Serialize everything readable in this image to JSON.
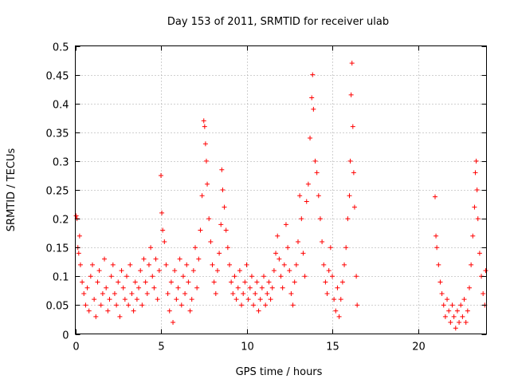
{
  "chart_data": {
    "type": "scatter",
    "title": "Day 153 of 2011, SRMTID for receiver ulab",
    "xlabel": "GPS time / hours",
    "ylabel": "SRMTID / TECUs",
    "xlim": [
      0,
      24
    ],
    "ylim": [
      0,
      0.5
    ],
    "xticks": [
      0,
      5,
      10,
      15,
      20
    ],
    "xtick_labels": [
      "0",
      "5",
      "10",
      "15",
      "20"
    ],
    "yticks": [
      0,
      0.05,
      0.1,
      0.15,
      0.2,
      0.25,
      0.3,
      0.35,
      0.4,
      0.45,
      0.5
    ],
    "ytick_labels": [
      "0",
      "0.05",
      "0.1",
      "0.15",
      "0.2",
      "0.25",
      "0.3",
      "0.35",
      "0.4",
      "0.45",
      "0.5"
    ],
    "grid": true,
    "marker": "+",
    "color": "#ff0000",
    "data_gap_hours": [
      16.5,
      21.0
    ],
    "series": [
      {
        "name": "SRMTID",
        "points": [
          [
            0.05,
            0.205
          ],
          [
            0.1,
            0.2
          ],
          [
            0.15,
            0.15
          ],
          [
            0.2,
            0.14
          ],
          [
            0.25,
            0.17
          ],
          [
            0.3,
            0.12
          ],
          [
            0.4,
            0.09
          ],
          [
            0.5,
            0.07
          ],
          [
            0.6,
            0.05
          ],
          [
            0.7,
            0.08
          ],
          [
            0.8,
            0.04
          ],
          [
            0.9,
            0.1
          ],
          [
            1.0,
            0.12
          ],
          [
            1.1,
            0.06
          ],
          [
            1.2,
            0.03
          ],
          [
            1.3,
            0.09
          ],
          [
            1.4,
            0.11
          ],
          [
            1.5,
            0.05
          ],
          [
            1.6,
            0.07
          ],
          [
            1.7,
            0.13
          ],
          [
            1.8,
            0.08
          ],
          [
            1.9,
            0.04
          ],
          [
            2.0,
            0.06
          ],
          [
            2.1,
            0.1
          ],
          [
            2.2,
            0.12
          ],
          [
            2.3,
            0.07
          ],
          [
            2.4,
            0.05
          ],
          [
            2.5,
            0.09
          ],
          [
            2.6,
            0.03
          ],
          [
            2.7,
            0.11
          ],
          [
            2.8,
            0.08
          ],
          [
            2.9,
            0.06
          ],
          [
            3.0,
            0.1
          ],
          [
            3.1,
            0.05
          ],
          [
            3.2,
            0.12
          ],
          [
            3.3,
            0.07
          ],
          [
            3.4,
            0.04
          ],
          [
            3.5,
            0.09
          ],
          [
            3.6,
            0.06
          ],
          [
            3.7,
            0.08
          ],
          [
            3.8,
            0.11
          ],
          [
            3.9,
            0.05
          ],
          [
            4.0,
            0.13
          ],
          [
            4.1,
            0.09
          ],
          [
            4.2,
            0.07
          ],
          [
            4.3,
            0.12
          ],
          [
            4.4,
            0.15
          ],
          [
            4.5,
            0.1
          ],
          [
            4.6,
            0.08
          ],
          [
            4.7,
            0.13
          ],
          [
            4.8,
            0.06
          ],
          [
            4.9,
            0.11
          ],
          [
            5.0,
            0.275
          ],
          [
            5.05,
            0.21
          ],
          [
            5.1,
            0.18
          ],
          [
            5.2,
            0.16
          ],
          [
            5.3,
            0.12
          ],
          [
            5.4,
            0.07
          ],
          [
            5.5,
            0.04
          ],
          [
            5.6,
            0.09
          ],
          [
            5.7,
            0.02
          ],
          [
            5.8,
            0.11
          ],
          [
            5.9,
            0.06
          ],
          [
            6.0,
            0.08
          ],
          [
            6.1,
            0.13
          ],
          [
            6.2,
            0.05
          ],
          [
            6.3,
            0.1
          ],
          [
            6.4,
            0.07
          ],
          [
            6.5,
            0.12
          ],
          [
            6.6,
            0.09
          ],
          [
            6.7,
            0.04
          ],
          [
            6.8,
            0.06
          ],
          [
            6.9,
            0.11
          ],
          [
            7.0,
            0.15
          ],
          [
            7.1,
            0.08
          ],
          [
            7.2,
            0.13
          ],
          [
            7.3,
            0.18
          ],
          [
            7.4,
            0.24
          ],
          [
            7.5,
            0.37
          ],
          [
            7.55,
            0.36
          ],
          [
            7.6,
            0.33
          ],
          [
            7.65,
            0.3
          ],
          [
            7.7,
            0.26
          ],
          [
            7.8,
            0.2
          ],
          [
            7.9,
            0.16
          ],
          [
            8.0,
            0.12
          ],
          [
            8.1,
            0.09
          ],
          [
            8.2,
            0.07
          ],
          [
            8.3,
            0.11
          ],
          [
            8.4,
            0.14
          ],
          [
            8.5,
            0.19
          ],
          [
            8.55,
            0.285
          ],
          [
            8.6,
            0.25
          ],
          [
            8.7,
            0.22
          ],
          [
            8.8,
            0.18
          ],
          [
            8.9,
            0.15
          ],
          [
            9.0,
            0.12
          ],
          [
            9.1,
            0.09
          ],
          [
            9.2,
            0.07
          ],
          [
            9.3,
            0.1
          ],
          [
            9.4,
            0.06
          ],
          [
            9.5,
            0.08
          ],
          [
            9.6,
            0.11
          ],
          [
            9.7,
            0.05
          ],
          [
            9.8,
            0.07
          ],
          [
            9.9,
            0.09
          ],
          [
            10.0,
            0.12
          ],
          [
            10.1,
            0.06
          ],
          [
            10.2,
            0.08
          ],
          [
            10.3,
            0.1
          ],
          [
            10.4,
            0.05
          ],
          [
            10.5,
            0.07
          ],
          [
            10.6,
            0.09
          ],
          [
            10.7,
            0.04
          ],
          [
            10.8,
            0.06
          ],
          [
            10.9,
            0.08
          ],
          [
            11.0,
            0.1
          ],
          [
            11.1,
            0.05
          ],
          [
            11.2,
            0.07
          ],
          [
            11.3,
            0.09
          ],
          [
            11.4,
            0.06
          ],
          [
            11.5,
            0.08
          ],
          [
            11.6,
            0.11
          ],
          [
            11.7,
            0.14
          ],
          [
            11.8,
            0.17
          ],
          [
            11.9,
            0.13
          ],
          [
            12.0,
            0.1
          ],
          [
            12.1,
            0.08
          ],
          [
            12.2,
            0.12
          ],
          [
            12.3,
            0.19
          ],
          [
            12.4,
            0.15
          ],
          [
            12.5,
            0.11
          ],
          [
            12.6,
            0.07
          ],
          [
            12.7,
            0.05
          ],
          [
            12.8,
            0.09
          ],
          [
            12.9,
            0.12
          ],
          [
            13.0,
            0.16
          ],
          [
            13.1,
            0.24
          ],
          [
            13.2,
            0.2
          ],
          [
            13.3,
            0.14
          ],
          [
            13.4,
            0.1
          ],
          [
            13.5,
            0.23
          ],
          [
            13.6,
            0.26
          ],
          [
            13.7,
            0.34
          ],
          [
            13.8,
            0.41
          ],
          [
            13.85,
            0.45
          ],
          [
            13.9,
            0.39
          ],
          [
            14.0,
            0.3
          ],
          [
            14.1,
            0.28
          ],
          [
            14.2,
            0.24
          ],
          [
            14.3,
            0.2
          ],
          [
            14.4,
            0.16
          ],
          [
            14.5,
            0.12
          ],
          [
            14.6,
            0.09
          ],
          [
            14.7,
            0.07
          ],
          [
            14.8,
            0.11
          ],
          [
            14.9,
            0.15
          ],
          [
            15.0,
            0.1
          ],
          [
            15.1,
            0.06
          ],
          [
            15.2,
            0.04
          ],
          [
            15.3,
            0.08
          ],
          [
            15.4,
            0.03
          ],
          [
            15.5,
            0.06
          ],
          [
            15.6,
            0.09
          ],
          [
            15.7,
            0.12
          ],
          [
            15.8,
            0.15
          ],
          [
            15.9,
            0.2
          ],
          [
            16.0,
            0.24
          ],
          [
            16.05,
            0.3
          ],
          [
            16.1,
            0.415
          ],
          [
            16.15,
            0.47
          ],
          [
            16.2,
            0.36
          ],
          [
            16.25,
            0.28
          ],
          [
            16.3,
            0.22
          ],
          [
            16.4,
            0.1
          ],
          [
            16.45,
            0.05
          ],
          [
            21.0,
            0.238
          ],
          [
            21.05,
            0.17
          ],
          [
            21.1,
            0.15
          ],
          [
            21.2,
            0.12
          ],
          [
            21.3,
            0.09
          ],
          [
            21.4,
            0.07
          ],
          [
            21.5,
            0.05
          ],
          [
            21.6,
            0.03
          ],
          [
            21.7,
            0.06
          ],
          [
            21.8,
            0.04
          ],
          [
            21.9,
            0.02
          ],
          [
            22.0,
            0.05
          ],
          [
            22.1,
            0.03
          ],
          [
            22.2,
            0.01
          ],
          [
            22.3,
            0.04
          ],
          [
            22.4,
            0.02
          ],
          [
            22.5,
            0.05
          ],
          [
            22.6,
            0.03
          ],
          [
            22.7,
            0.06
          ],
          [
            22.8,
            0.02
          ],
          [
            22.9,
            0.04
          ],
          [
            23.0,
            0.08
          ],
          [
            23.1,
            0.12
          ],
          [
            23.2,
            0.17
          ],
          [
            23.3,
            0.22
          ],
          [
            23.35,
            0.28
          ],
          [
            23.4,
            0.3
          ],
          [
            23.45,
            0.25
          ],
          [
            23.5,
            0.2
          ],
          [
            23.6,
            0.14
          ],
          [
            23.7,
            0.1
          ],
          [
            23.8,
            0.07
          ],
          [
            23.9,
            0.05
          ],
          [
            23.95,
            0.11
          ]
        ]
      }
    ]
  }
}
